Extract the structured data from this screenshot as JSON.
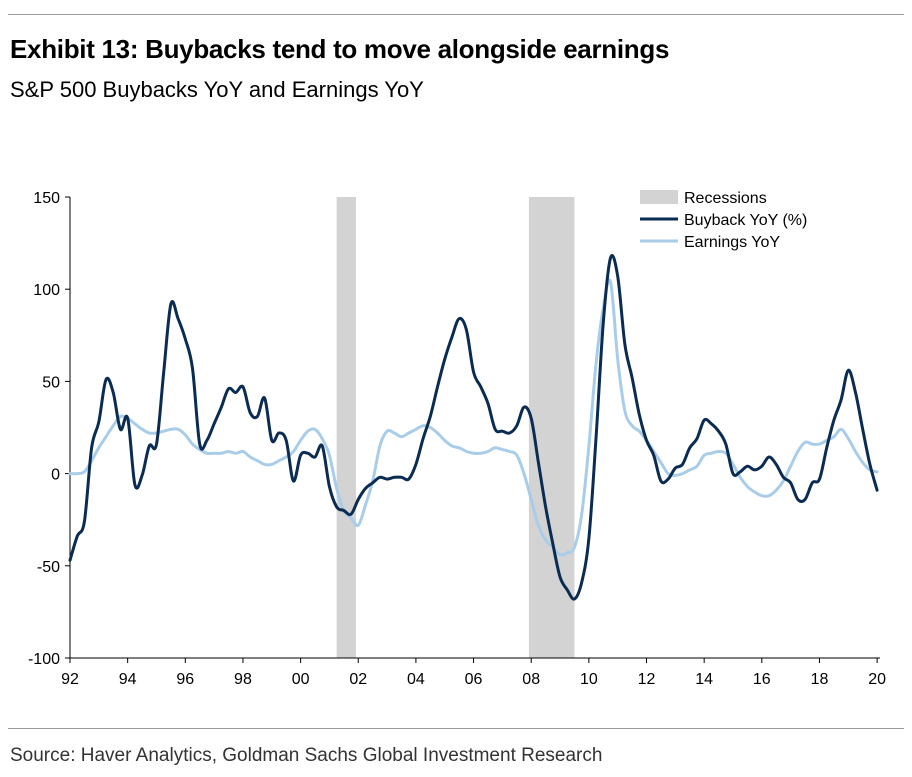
{
  "title": "Exhibit 13: Buybacks tend to move alongside earnings",
  "subtitle": "S&P 500 Buybacks YoY and Earnings YoY",
  "source": "Source: Haver Analytics, Goldman Sachs Global Investment Research",
  "chart_data": {
    "type": "line",
    "title": "Exhibit 13: Buybacks tend to move alongside earnings",
    "subtitle": "S&P 500 Buybacks YoY and Earnings YoY",
    "xlabel": "",
    "ylabel": "",
    "xlim": [
      1992.0,
      2020.1
    ],
    "ylim": [
      -100,
      150
    ],
    "yticks": [
      150,
      100,
      50,
      0,
      -50,
      -100
    ],
    "xtick_labels": [
      "92",
      "94",
      "96",
      "98",
      "00",
      "02",
      "04",
      "06",
      "08",
      "10",
      "12",
      "14",
      "16",
      "18",
      "20"
    ],
    "xtick_values": [
      1992,
      1994,
      1996,
      1998,
      2000,
      2002,
      2004,
      2006,
      2008,
      2010,
      2012,
      2014,
      2016,
      2018,
      2020
    ],
    "grid": false,
    "legend_position": "top-right",
    "recessions": [
      {
        "name": "Recessions",
        "start": 2001.25,
        "end": 2001.92
      },
      {
        "name": "Recessions",
        "start": 2007.92,
        "end": 2009.5
      }
    ],
    "series": [
      {
        "name": "Buyback YoY (%)",
        "color": "#0b2c52",
        "points": [
          [
            1992.0,
            -47
          ],
          [
            1992.25,
            -34
          ],
          [
            1992.5,
            -26
          ],
          [
            1992.75,
            14
          ],
          [
            1993.0,
            28
          ],
          [
            1993.25,
            51
          ],
          [
            1993.5,
            44
          ],
          [
            1993.75,
            24
          ],
          [
            1994.0,
            30
          ],
          [
            1994.25,
            -6
          ],
          [
            1994.5,
            -1
          ],
          [
            1994.75,
            15
          ],
          [
            1995.0,
            16
          ],
          [
            1995.25,
            55
          ],
          [
            1995.5,
            92
          ],
          [
            1995.75,
            84
          ],
          [
            1996.0,
            73
          ],
          [
            1996.25,
            57
          ],
          [
            1996.5,
            16
          ],
          [
            1996.75,
            18
          ],
          [
            1997.0,
            27
          ],
          [
            1997.25,
            36
          ],
          [
            1997.5,
            46
          ],
          [
            1997.75,
            44
          ],
          [
            1998.0,
            47
          ],
          [
            1998.25,
            33
          ],
          [
            1998.5,
            31
          ],
          [
            1998.75,
            41
          ],
          [
            1999.0,
            18
          ],
          [
            1999.25,
            22
          ],
          [
            1999.5,
            18
          ],
          [
            1999.75,
            -4
          ],
          [
            2000.0,
            10
          ],
          [
            2000.25,
            11
          ],
          [
            2000.5,
            9
          ],
          [
            2000.75,
            15
          ],
          [
            2001.0,
            -7
          ],
          [
            2001.25,
            -18
          ],
          [
            2001.5,
            -20
          ],
          [
            2001.75,
            -22
          ],
          [
            2002.0,
            -14
          ],
          [
            2002.25,
            -8
          ],
          [
            2002.5,
            -5
          ],
          [
            2002.75,
            -2
          ],
          [
            2003.0,
            -3
          ],
          [
            2003.25,
            -2
          ],
          [
            2003.5,
            -2
          ],
          [
            2003.75,
            -3
          ],
          [
            2004.0,
            5
          ],
          [
            2004.25,
            19
          ],
          [
            2004.5,
            31
          ],
          [
            2004.75,
            47
          ],
          [
            2005.0,
            62
          ],
          [
            2005.25,
            74
          ],
          [
            2005.5,
            84
          ],
          [
            2005.75,
            78
          ],
          [
            2006.0,
            55
          ],
          [
            2006.25,
            47
          ],
          [
            2006.5,
            38
          ],
          [
            2006.75,
            24
          ],
          [
            2007.0,
            23
          ],
          [
            2007.25,
            22
          ],
          [
            2007.5,
            26
          ],
          [
            2007.75,
            36
          ],
          [
            2008.0,
            30
          ],
          [
            2008.25,
            6
          ],
          [
            2008.5,
            -18
          ],
          [
            2008.75,
            -38
          ],
          [
            2009.0,
            -56
          ],
          [
            2009.25,
            -63
          ],
          [
            2009.5,
            -68
          ],
          [
            2009.75,
            -59
          ],
          [
            2010.0,
            -35
          ],
          [
            2010.25,
            20
          ],
          [
            2010.5,
            82
          ],
          [
            2010.75,
            117
          ],
          [
            2011.0,
            107
          ],
          [
            2011.25,
            70
          ],
          [
            2011.5,
            52
          ],
          [
            2011.75,
            32
          ],
          [
            2012.0,
            18
          ],
          [
            2012.25,
            10
          ],
          [
            2012.5,
            -4
          ],
          [
            2012.75,
            -3
          ],
          [
            2013.0,
            3
          ],
          [
            2013.25,
            5
          ],
          [
            2013.5,
            14
          ],
          [
            2013.75,
            19
          ],
          [
            2014.0,
            29
          ],
          [
            2014.25,
            27
          ],
          [
            2014.5,
            23
          ],
          [
            2014.75,
            16
          ],
          [
            2015.0,
            0
          ],
          [
            2015.25,
            1
          ],
          [
            2015.5,
            4
          ],
          [
            2015.75,
            2
          ],
          [
            2016.0,
            4
          ],
          [
            2016.25,
            9
          ],
          [
            2016.5,
            5
          ],
          [
            2016.75,
            -2
          ],
          [
            2017.0,
            -5
          ],
          [
            2017.25,
            -14
          ],
          [
            2017.5,
            -14
          ],
          [
            2017.75,
            -5
          ],
          [
            2018.0,
            -3
          ],
          [
            2018.25,
            14
          ],
          [
            2018.5,
            29
          ],
          [
            2018.75,
            40
          ],
          [
            2019.0,
            56
          ],
          [
            2019.25,
            44
          ],
          [
            2019.5,
            24
          ],
          [
            2019.75,
            5
          ],
          [
            2020.0,
            -9
          ]
        ]
      },
      {
        "name": "Earnings YoY",
        "color": "#a9cde9",
        "points": [
          [
            1992.0,
            0
          ],
          [
            1992.25,
            0
          ],
          [
            1992.5,
            1
          ],
          [
            1992.75,
            7
          ],
          [
            1993.0,
            14
          ],
          [
            1993.25,
            20
          ],
          [
            1993.5,
            26
          ],
          [
            1993.75,
            31
          ],
          [
            1994.0,
            30
          ],
          [
            1994.25,
            27
          ],
          [
            1994.5,
            24
          ],
          [
            1994.75,
            22
          ],
          [
            1995.0,
            22
          ],
          [
            1995.25,
            23
          ],
          [
            1995.5,
            24
          ],
          [
            1995.75,
            24
          ],
          [
            1996.0,
            21
          ],
          [
            1996.25,
            16
          ],
          [
            1996.5,
            13
          ],
          [
            1996.75,
            11
          ],
          [
            1997.0,
            11
          ],
          [
            1997.25,
            11
          ],
          [
            1997.5,
            12
          ],
          [
            1997.75,
            11
          ],
          [
            1998.0,
            12
          ],
          [
            1998.25,
            9
          ],
          [
            1998.5,
            7
          ],
          [
            1998.75,
            5
          ],
          [
            1999.0,
            5
          ],
          [
            1999.25,
            7
          ],
          [
            1999.5,
            9
          ],
          [
            1999.75,
            12
          ],
          [
            2000.0,
            18
          ],
          [
            2000.25,
            23
          ],
          [
            2000.5,
            24
          ],
          [
            2000.75,
            19
          ],
          [
            2001.0,
            10
          ],
          [
            2001.25,
            -8
          ],
          [
            2001.5,
            -20
          ],
          [
            2001.75,
            -24
          ],
          [
            2002.0,
            -28
          ],
          [
            2002.25,
            -17
          ],
          [
            2002.5,
            -4
          ],
          [
            2002.75,
            15
          ],
          [
            2003.0,
            23
          ],
          [
            2003.25,
            22
          ],
          [
            2003.5,
            20
          ],
          [
            2003.75,
            22
          ],
          [
            2004.0,
            24
          ],
          [
            2004.25,
            26
          ],
          [
            2004.5,
            25
          ],
          [
            2004.75,
            22
          ],
          [
            2005.0,
            18
          ],
          [
            2005.25,
            15
          ],
          [
            2005.5,
            14
          ],
          [
            2005.75,
            12
          ],
          [
            2006.0,
            11
          ],
          [
            2006.25,
            11
          ],
          [
            2006.5,
            12
          ],
          [
            2006.75,
            14
          ],
          [
            2007.0,
            13
          ],
          [
            2007.25,
            12
          ],
          [
            2007.5,
            10
          ],
          [
            2007.75,
            0
          ],
          [
            2008.0,
            -14
          ],
          [
            2008.25,
            -28
          ],
          [
            2008.5,
            -36
          ],
          [
            2008.75,
            -40
          ],
          [
            2009.0,
            -44
          ],
          [
            2009.25,
            -43
          ],
          [
            2009.5,
            -40
          ],
          [
            2009.75,
            -22
          ],
          [
            2010.0,
            15
          ],
          [
            2010.25,
            60
          ],
          [
            2010.5,
            90
          ],
          [
            2010.75,
            104
          ],
          [
            2011.0,
            62
          ],
          [
            2011.25,
            34
          ],
          [
            2011.5,
            26
          ],
          [
            2011.75,
            23
          ],
          [
            2012.0,
            18
          ],
          [
            2012.25,
            12
          ],
          [
            2012.5,
            6
          ],
          [
            2012.75,
            0
          ],
          [
            2013.0,
            -1
          ],
          [
            2013.25,
            0
          ],
          [
            2013.5,
            2
          ],
          [
            2013.75,
            4
          ],
          [
            2014.0,
            10
          ],
          [
            2014.25,
            11
          ],
          [
            2014.5,
            12
          ],
          [
            2014.75,
            11
          ],
          [
            2015.0,
            5
          ],
          [
            2015.25,
            -2
          ],
          [
            2015.5,
            -7
          ],
          [
            2015.75,
            -10
          ],
          [
            2016.0,
            -12
          ],
          [
            2016.25,
            -12
          ],
          [
            2016.5,
            -9
          ],
          [
            2016.75,
            -4
          ],
          [
            2017.0,
            4
          ],
          [
            2017.25,
            12
          ],
          [
            2017.5,
            17
          ],
          [
            2017.75,
            16
          ],
          [
            2018.0,
            16
          ],
          [
            2018.25,
            18
          ],
          [
            2018.5,
            20
          ],
          [
            2018.75,
            24
          ],
          [
            2019.0,
            19
          ],
          [
            2019.25,
            12
          ],
          [
            2019.5,
            6
          ],
          [
            2019.75,
            2
          ],
          [
            2020.0,
            1
          ]
        ]
      }
    ],
    "legend": [
      {
        "label": "Recessions",
        "kind": "patch",
        "color": "#d3d3d3"
      },
      {
        "label": "Buyback YoY (%)",
        "kind": "line",
        "color": "#0b2c52"
      },
      {
        "label": "Earnings YoY",
        "kind": "line",
        "color": "#a9cde9"
      }
    ]
  }
}
